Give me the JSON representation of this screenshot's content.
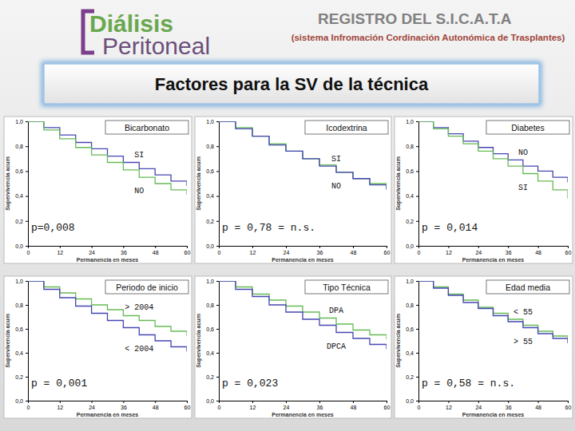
{
  "header": {
    "logo_line1": "Diálisis",
    "logo_line2": "Peritoneal",
    "registry": "REGISTRO DEL S.I.C.A.T.A",
    "registry_subtitle": "(sistema Infromación Cordinación Autonómica de Trasplantes)"
  },
  "slide_title": "Factores para la SV de la técnica",
  "chart_data": [
    {
      "type": "line",
      "title": "Bicarbonato",
      "annotation": "p=0,008",
      "x_label": "Permanencia en meses",
      "y_label": "Supervivencia acum",
      "x": [
        0,
        6,
        12,
        18,
        24,
        30,
        36,
        42,
        48,
        54,
        60
      ],
      "xlim": [
        0,
        60
      ],
      "xticks": [
        0,
        12,
        24,
        36,
        48,
        60
      ],
      "ylim": [
        0,
        1
      ],
      "yticks": [
        {
          "value": 0,
          "label": "0,0"
        },
        {
          "value": 0.2,
          "label": "0,2"
        },
        {
          "value": 0.4,
          "label": "0,4"
        },
        {
          "value": 0.6,
          "label": "0,6"
        },
        {
          "value": 0.8,
          "label": "0,8"
        },
        {
          "value": 1,
          "label": "1,0"
        }
      ],
      "line_style": "step",
      "series": [
        {
          "name": "SI",
          "color": "#4646b4",
          "values": [
            1,
            0.95,
            0.89,
            0.83,
            0.78,
            0.72,
            0.67,
            0.62,
            0.57,
            0.52,
            0.48
          ]
        },
        {
          "name": "NO",
          "color": "#66bb55",
          "values": [
            1,
            0.93,
            0.86,
            0.79,
            0.73,
            0.67,
            0.61,
            0.55,
            0.5,
            0.45,
            0.41
          ]
        }
      ]
    },
    {
      "type": "line",
      "title": "Icodextrina",
      "annotation": "p = 0,78 = n.s.",
      "x_label": "Permanencia en meses",
      "y_label": "Supervivencia acum",
      "x": [
        0,
        6,
        12,
        18,
        24,
        30,
        36,
        42,
        48,
        54,
        60
      ],
      "xlim": [
        0,
        60
      ],
      "xticks": [
        0,
        12,
        24,
        36,
        48,
        60
      ],
      "ylim": [
        0,
        1
      ],
      "yticks": [
        {
          "value": 0,
          "label": "0,0"
        },
        {
          "value": 0.2,
          "label": "0,2"
        },
        {
          "value": 0.4,
          "label": "0,4"
        },
        {
          "value": 0.6,
          "label": "0,6"
        },
        {
          "value": 0.8,
          "label": "0,8"
        },
        {
          "value": 1,
          "label": "1,0"
        }
      ],
      "line_style": "step",
      "series": [
        {
          "name": "SI",
          "color": "#66bb55",
          "values": [
            1,
            0.95,
            0.88,
            0.82,
            0.76,
            0.7,
            0.65,
            0.59,
            0.54,
            0.5,
            0.46
          ]
        },
        {
          "name": "NO",
          "color": "#4646b4",
          "values": [
            1,
            0.94,
            0.88,
            0.81,
            0.76,
            0.7,
            0.64,
            0.59,
            0.54,
            0.49,
            0.45
          ]
        }
      ]
    },
    {
      "type": "line",
      "title": "Diabetes",
      "annotation": "p = 0,014",
      "x_label": "Permanencia en meses",
      "y_label": "Supervivencia acum",
      "x": [
        0,
        6,
        12,
        18,
        24,
        30,
        36,
        42,
        48,
        54,
        60
      ],
      "xlim": [
        0,
        60
      ],
      "xticks": [
        0,
        12,
        24,
        36,
        48,
        60
      ],
      "ylim": [
        0,
        1
      ],
      "yticks": [
        {
          "value": 0,
          "label": "0,0"
        },
        {
          "value": 0.2,
          "label": "0,2"
        },
        {
          "value": 0.4,
          "label": "0,4"
        },
        {
          "value": 0.6,
          "label": "0,6"
        },
        {
          "value": 0.8,
          "label": "0,8"
        },
        {
          "value": 1,
          "label": "1,0"
        }
      ],
      "line_style": "step",
      "series": [
        {
          "name": "NO",
          "color": "#4646b4",
          "values": [
            1,
            0.95,
            0.9,
            0.84,
            0.79,
            0.74,
            0.69,
            0.64,
            0.6,
            0.55,
            0.51
          ]
        },
        {
          "name": "SI",
          "color": "#66bb55",
          "values": [
            1,
            0.94,
            0.88,
            0.82,
            0.76,
            0.7,
            0.64,
            0.58,
            0.52,
            0.45,
            0.38
          ]
        }
      ]
    },
    {
      "type": "line",
      "title": "Periodo de inicio",
      "annotation": "p = 0,001",
      "x_label": "Permanencia en meses",
      "y_label": "Supervivencia acum",
      "x": [
        0,
        6,
        12,
        18,
        24,
        30,
        36,
        42,
        48,
        54,
        60
      ],
      "xlim": [
        0,
        60
      ],
      "xticks": [
        0,
        12,
        24,
        36,
        48,
        60
      ],
      "ylim": [
        0,
        1
      ],
      "yticks": [
        {
          "value": 0,
          "label": "0,0"
        },
        {
          "value": 0.2,
          "label": "0,2"
        },
        {
          "value": 0.4,
          "label": "0,4"
        },
        {
          "value": 0.6,
          "label": "0,6"
        },
        {
          "value": 0.8,
          "label": "0,8"
        },
        {
          "value": 1,
          "label": "1,0"
        }
      ],
      "line_style": "step",
      "series": [
        {
          "name": "> 2004",
          "color": "#66bb55",
          "values": [
            1,
            0.95,
            0.9,
            0.85,
            0.8,
            0.76,
            0.71,
            0.67,
            0.62,
            0.58,
            0.54
          ]
        },
        {
          "name": "< 2004",
          "color": "#4646b4",
          "values": [
            1,
            0.93,
            0.86,
            0.79,
            0.73,
            0.67,
            0.61,
            0.55,
            0.5,
            0.45,
            0.41
          ]
        }
      ]
    },
    {
      "type": "line",
      "title": "Tipo Técnica",
      "annotation": "p = 0,023",
      "x_label": "Permanencia en meses",
      "y_label": "Supervivencia acum",
      "x": [
        0,
        6,
        12,
        18,
        24,
        30,
        36,
        42,
        48,
        54,
        60
      ],
      "xlim": [
        0,
        60
      ],
      "xticks": [
        0,
        12,
        24,
        36,
        48,
        60
      ],
      "ylim": [
        0,
        1
      ],
      "yticks": [
        {
          "value": 0,
          "label": "0,0"
        },
        {
          "value": 0.2,
          "label": "0,2"
        },
        {
          "value": 0.4,
          "label": "0,4"
        },
        {
          "value": 0.6,
          "label": "0,6"
        },
        {
          "value": 0.8,
          "label": "0,8"
        },
        {
          "value": 1,
          "label": "1,0"
        }
      ],
      "line_style": "step",
      "series": [
        {
          "name": "DPA",
          "color": "#66bb55",
          "values": [
            1,
            0.95,
            0.89,
            0.84,
            0.79,
            0.74,
            0.69,
            0.64,
            0.59,
            0.55,
            0.51
          ]
        },
        {
          "name": "DPCA",
          "color": "#4646b4",
          "values": [
            1,
            0.93,
            0.87,
            0.8,
            0.74,
            0.68,
            0.63,
            0.57,
            0.52,
            0.47,
            0.43
          ]
        }
      ]
    },
    {
      "type": "line",
      "title": "Edad media",
      "annotation": "p = 0,58 = n.s.",
      "x_label": "Permanencia en meses",
      "y_label": "Supervivencia acum",
      "x": [
        0,
        6,
        12,
        18,
        24,
        30,
        36,
        42,
        48,
        54,
        60
      ],
      "xlim": [
        0,
        60
      ],
      "xticks": [
        0,
        12,
        24,
        36,
        48,
        60
      ],
      "ylim": [
        0,
        1
      ],
      "yticks": [
        {
          "value": 0,
          "label": "0,0"
        },
        {
          "value": 0.2,
          "label": "0,2"
        },
        {
          "value": 0.4,
          "label": "0,4"
        },
        {
          "value": 0.6,
          "label": "0,6"
        },
        {
          "value": 0.8,
          "label": "0,8"
        },
        {
          "value": 1,
          "label": "1,0"
        }
      ],
      "line_style": "step",
      "series": [
        {
          "name": "< 55",
          "color": "#66bb55",
          "values": [
            1,
            0.95,
            0.89,
            0.84,
            0.78,
            0.73,
            0.68,
            0.63,
            0.58,
            0.54,
            0.5
          ]
        },
        {
          "name": "> 55",
          "color": "#4646b4",
          "values": [
            1,
            0.94,
            0.88,
            0.82,
            0.77,
            0.71,
            0.66,
            0.61,
            0.56,
            0.52,
            0.48
          ]
        }
      ]
    }
  ]
}
